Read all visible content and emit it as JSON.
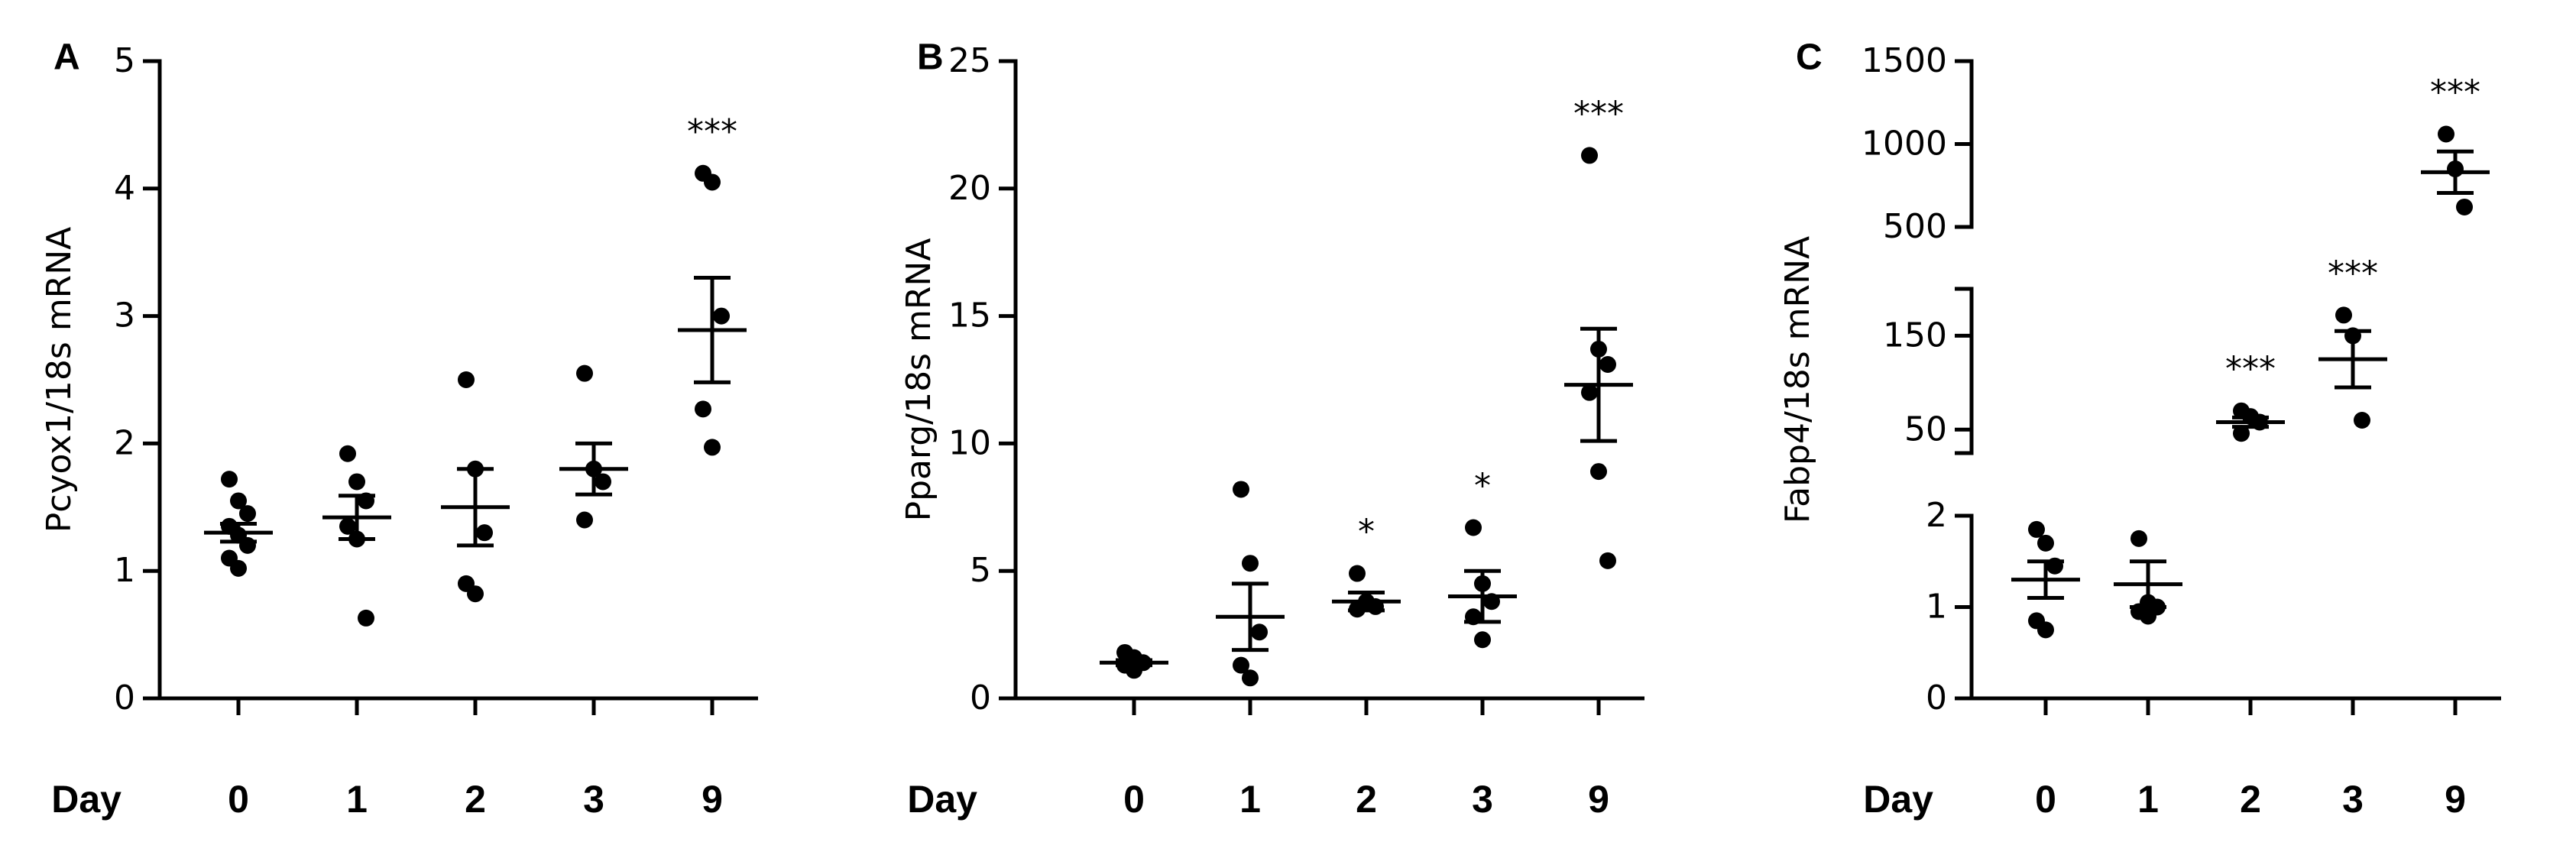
{
  "chart_data": [
    {
      "type": "dot",
      "panel": "A",
      "ylabel": "Pcyox1/18s mRNA",
      "xlabel": "Day",
      "categories": [
        "0",
        "1",
        "2",
        "3",
        "9"
      ],
      "points": [
        [
          1.72,
          1.55,
          1.45,
          1.35,
          1.28,
          1.2,
          1.1,
          1.02
        ],
        [
          1.92,
          1.7,
          1.55,
          1.35,
          1.25,
          0.63
        ],
        [
          2.5,
          1.8,
          1.3,
          0.9,
          0.82
        ],
        [
          2.55,
          1.8,
          1.7,
          1.4
        ],
        [
          4.12,
          4.05,
          3.0,
          2.27,
          1.97
        ]
      ],
      "mean": [
        1.3,
        1.42,
        1.5,
        1.8,
        2.89
      ],
      "sem": [
        0.07,
        0.17,
        0.3,
        0.2,
        0.41
      ],
      "significance": [
        null,
        null,
        null,
        null,
        "***"
      ],
      "ylim": [
        0,
        5
      ],
      "yticks": [
        0,
        1,
        2,
        3,
        4,
        5
      ],
      "color": "#000000"
    },
    {
      "type": "dot",
      "panel": "B",
      "ylabel": "Pparg/18s mRNA",
      "xlabel": "Day",
      "categories": [
        "0",
        "1",
        "2",
        "3",
        "9"
      ],
      "points": [
        [
          1.8,
          1.6,
          1.4,
          1.3,
          1.1
        ],
        [
          8.2,
          5.3,
          2.6,
          1.3,
          0.8
        ],
        [
          4.9,
          3.8,
          3.6,
          3.5
        ],
        [
          6.7,
          4.5,
          3.8,
          3.2,
          2.3
        ],
        [
          21.3,
          13.7,
          13.1,
          12.0,
          8.9,
          5.4
        ]
      ],
      "mean": [
        1.4,
        3.2,
        3.8,
        4.0,
        12.3
      ],
      "sem": [
        0.1,
        1.3,
        0.35,
        1.0,
        2.2
      ],
      "significance": [
        null,
        null,
        "*",
        "*",
        "***"
      ],
      "ylim": [
        0,
        25
      ],
      "yticks": [
        0,
        5,
        10,
        15,
        20,
        25
      ],
      "color": "#000000"
    },
    {
      "type": "dot",
      "panel": "C",
      "ylabel": "Fabp4/18s mRNA",
      "xlabel": "Day",
      "categories": [
        "0",
        "1",
        "2",
        "3",
        "9"
      ],
      "points": [
        [
          1.85,
          1.7,
          1.45,
          0.85,
          0.75
        ],
        [
          1.75,
          1.05,
          1.0,
          0.95,
          0.9
        ],
        [
          70,
          64,
          58,
          46
        ],
        [
          172,
          150,
          60
        ],
        [
          1060,
          850,
          620
        ]
      ],
      "mean": [
        1.3,
        1.25,
        58,
        125,
        830
      ],
      "sem": [
        0.2,
        0.25,
        5,
        30,
        125
      ],
      "significance": [
        null,
        null,
        "***",
        "***",
        "***"
      ],
      "y_segments": [
        {
          "ylim": [
            0,
            2
          ],
          "yticks": [
            0,
            1,
            2
          ]
        },
        {
          "ylim": [
            25,
            200
          ],
          "yticks": [
            50,
            150
          ]
        },
        {
          "ylim": [
            500,
            1500
          ],
          "yticks": [
            500,
            1000,
            1500
          ]
        }
      ],
      "color": "#000000"
    }
  ]
}
